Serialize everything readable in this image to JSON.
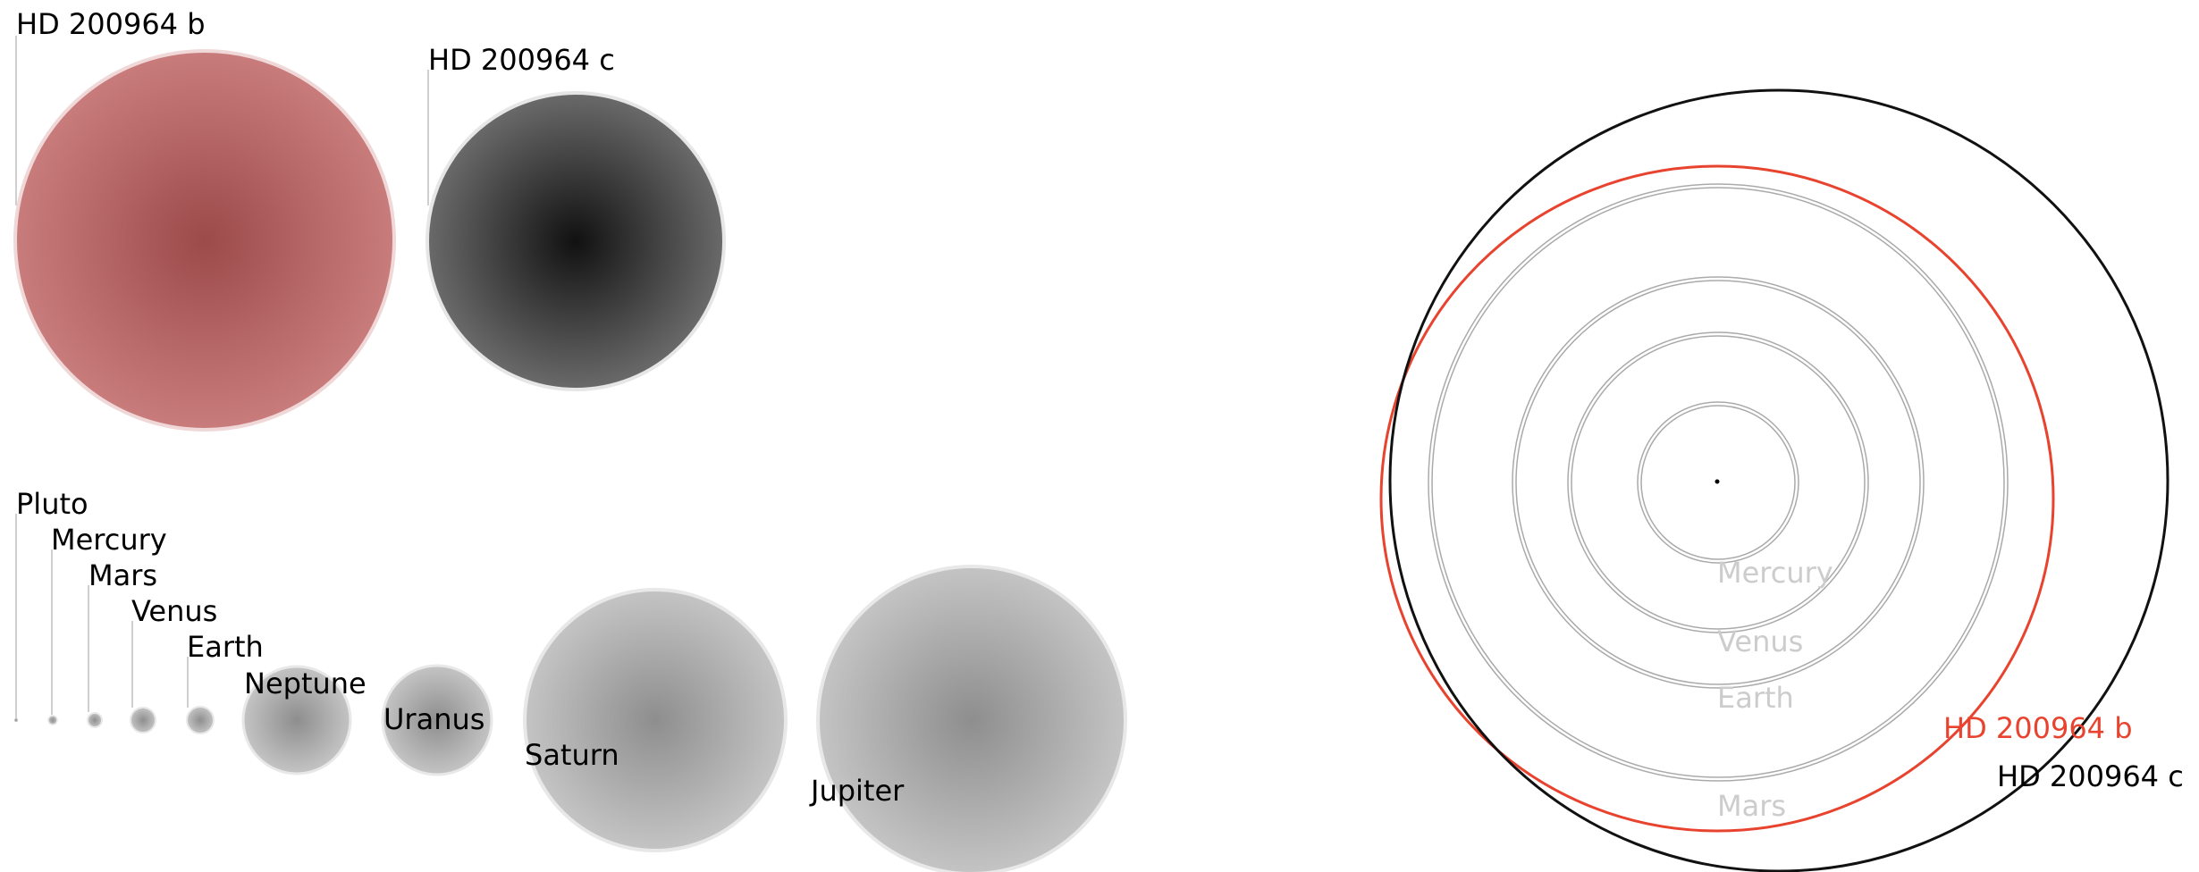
{
  "colors": {
    "planet_b_center": "#9c4a4a",
    "planet_b_edge": "#c97c7c",
    "planet_c_center": "#111111",
    "planet_c_edge": "#6a6a6a",
    "solar_center": "#8e8e8e",
    "solar_edge": "#c4c4c4",
    "orbit_b": "#e8432e",
    "orbit_c": "#111111",
    "orbit_solar": "#aaaaaa",
    "orbit_label": "#cccccc"
  },
  "exoplanets": [
    {
      "label": "HD 200964 b"
    },
    {
      "label": "HD 200964 c"
    }
  ],
  "solar_system": [
    {
      "label": "Pluto"
    },
    {
      "label": "Mercury"
    },
    {
      "label": "Mars"
    },
    {
      "label": "Venus"
    },
    {
      "label": "Earth"
    },
    {
      "label": "Neptune"
    },
    {
      "label": "Uranus"
    },
    {
      "label": "Saturn"
    },
    {
      "label": "Jupiter"
    }
  ],
  "orbits": {
    "labels": [
      {
        "label": "Mercury"
      },
      {
        "label": "Venus"
      },
      {
        "label": "Earth"
      },
      {
        "label": "Mars"
      },
      {
        "label": "HD 200964 b"
      },
      {
        "label": "HD 200964 c"
      }
    ]
  }
}
